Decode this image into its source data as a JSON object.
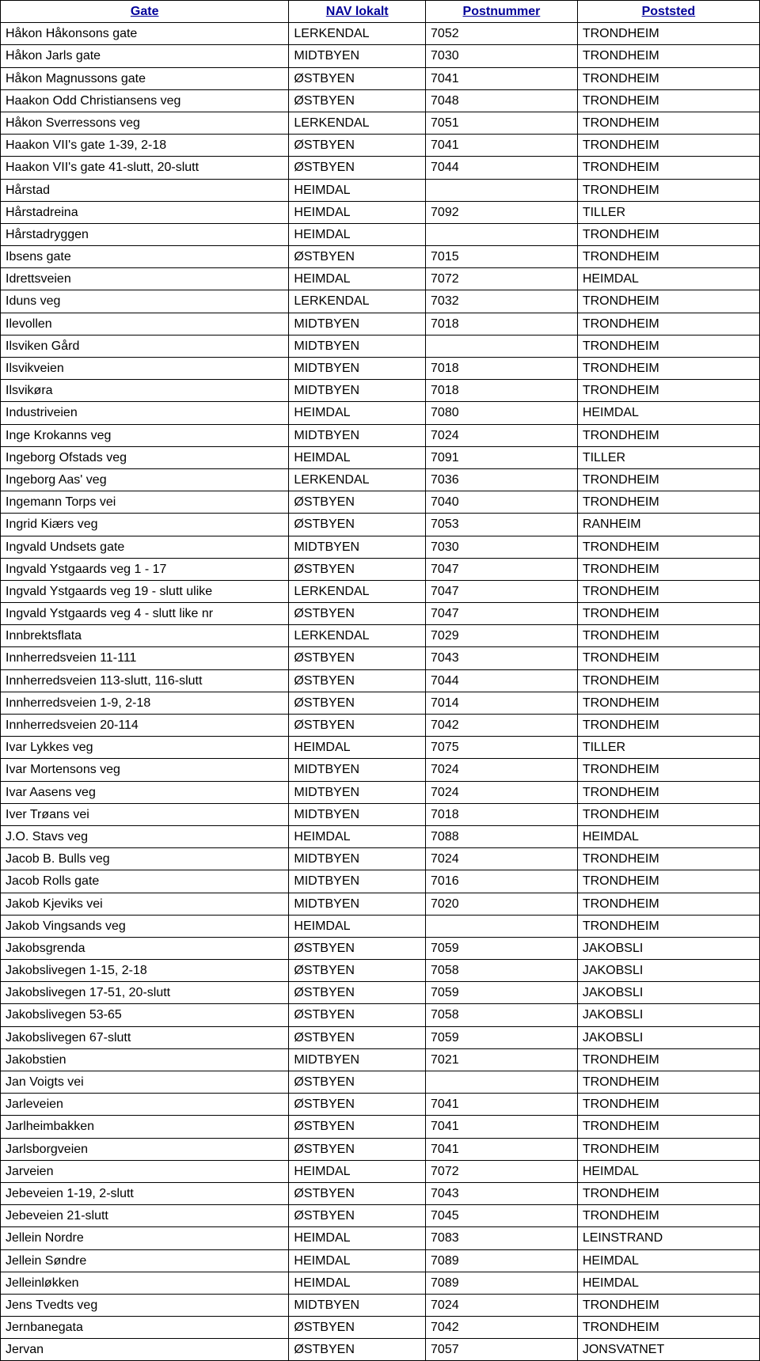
{
  "table": {
    "columns": [
      "Gate",
      "NAV lokalt",
      "Postnummer",
      "Poststed"
    ],
    "rows": [
      [
        "Håkon Håkonsons gate",
        "LERKENDAL",
        "7052",
        "TRONDHEIM"
      ],
      [
        "Håkon Jarls gate",
        "MIDTBYEN",
        "7030",
        "TRONDHEIM"
      ],
      [
        "Håkon Magnussons gate",
        "ØSTBYEN",
        "7041",
        "TRONDHEIM"
      ],
      [
        "Haakon Odd Christiansens veg",
        "ØSTBYEN",
        "7048",
        "TRONDHEIM"
      ],
      [
        "Håkon Sverressons veg",
        "LERKENDAL",
        "7051",
        "TRONDHEIM"
      ],
      [
        "Haakon VII's gate 1-39, 2-18",
        "ØSTBYEN",
        "7041",
        "TRONDHEIM"
      ],
      [
        "Haakon VII's gate 41-slutt, 20-slutt",
        "ØSTBYEN",
        "7044",
        "TRONDHEIM"
      ],
      [
        "Hårstad",
        "HEIMDAL",
        "",
        "TRONDHEIM"
      ],
      [
        "Hårstadreina",
        "HEIMDAL",
        "7092",
        "TILLER"
      ],
      [
        "Hårstadryggen",
        "HEIMDAL",
        "",
        "TRONDHEIM"
      ],
      [
        "Ibsens gate",
        "ØSTBYEN",
        "7015",
        "TRONDHEIM"
      ],
      [
        "Idrettsveien",
        "HEIMDAL",
        "7072",
        "HEIMDAL"
      ],
      [
        "Iduns veg",
        "LERKENDAL",
        "7032",
        "TRONDHEIM"
      ],
      [
        "Ilevollen",
        "MIDTBYEN",
        "7018",
        "TRONDHEIM"
      ],
      [
        "Ilsviken Gård",
        "MIDTBYEN",
        "",
        "TRONDHEIM"
      ],
      [
        "Ilsvikveien",
        "MIDTBYEN",
        "7018",
        "TRONDHEIM"
      ],
      [
        "Ilsvikøra",
        "MIDTBYEN",
        "7018",
        "TRONDHEIM"
      ],
      [
        "Industriveien",
        "HEIMDAL",
        "7080",
        "HEIMDAL"
      ],
      [
        "Inge Krokanns veg",
        "MIDTBYEN",
        "7024",
        "TRONDHEIM"
      ],
      [
        "Ingeborg Ofstads veg",
        "HEIMDAL",
        "7091",
        "TILLER"
      ],
      [
        "Ingeborg Aas' veg",
        "LERKENDAL",
        "7036",
        "TRONDHEIM"
      ],
      [
        "Ingemann Torps vei",
        "ØSTBYEN",
        "7040",
        "TRONDHEIM"
      ],
      [
        "Ingrid Kiærs veg",
        "ØSTBYEN",
        "7053",
        "RANHEIM"
      ],
      [
        "Ingvald Undsets gate",
        "MIDTBYEN",
        "7030",
        "TRONDHEIM"
      ],
      [
        "Ingvald Ystgaards veg 1 - 17",
        "ØSTBYEN",
        "7047",
        "TRONDHEIM"
      ],
      [
        "Ingvald Ystgaards veg 19 - slutt ulike",
        "LERKENDAL",
        "7047",
        "TRONDHEIM"
      ],
      [
        "Ingvald Ystgaards veg 4 - slutt like nr",
        "ØSTBYEN",
        "7047",
        "TRONDHEIM"
      ],
      [
        "Innbrektsflata",
        "LERKENDAL",
        "7029",
        "TRONDHEIM"
      ],
      [
        "Innherredsveien 11-111",
        "ØSTBYEN",
        "7043",
        "TRONDHEIM"
      ],
      [
        "Innherredsveien 113-slutt, 116-slutt",
        "ØSTBYEN",
        "7044",
        "TRONDHEIM"
      ],
      [
        "Innherredsveien 1-9, 2-18",
        "ØSTBYEN",
        "7014",
        "TRONDHEIM"
      ],
      [
        "Innherredsveien 20-114",
        "ØSTBYEN",
        "7042",
        "TRONDHEIM"
      ],
      [
        "Ivar Lykkes veg",
        "HEIMDAL",
        "7075",
        "TILLER"
      ],
      [
        "Ivar Mortensons veg",
        "MIDTBYEN",
        "7024",
        "TRONDHEIM"
      ],
      [
        "Ivar Aasens veg",
        "MIDTBYEN",
        "7024",
        "TRONDHEIM"
      ],
      [
        "Iver Trøans vei",
        "MIDTBYEN",
        "7018",
        "TRONDHEIM"
      ],
      [
        "J.O. Stavs veg",
        "HEIMDAL",
        "7088",
        "HEIMDAL"
      ],
      [
        "Jacob B. Bulls veg",
        "MIDTBYEN",
        "7024",
        "TRONDHEIM"
      ],
      [
        "Jacob Rolls gate",
        "MIDTBYEN",
        "7016",
        "TRONDHEIM"
      ],
      [
        "Jakob Kjeviks vei",
        "MIDTBYEN",
        "7020",
        "TRONDHEIM"
      ],
      [
        "Jakob Vingsands veg",
        "HEIMDAL",
        "",
        "TRONDHEIM"
      ],
      [
        "Jakobsgrenda",
        "ØSTBYEN",
        "7059",
        "JAKOBSLI"
      ],
      [
        "Jakobslivegen 1-15, 2-18",
        "ØSTBYEN",
        "7058",
        "JAKOBSLI"
      ],
      [
        "Jakobslivegen 17-51, 20-slutt",
        "ØSTBYEN",
        "7059",
        "JAKOBSLI"
      ],
      [
        "Jakobslivegen 53-65",
        "ØSTBYEN",
        "7058",
        "JAKOBSLI"
      ],
      [
        "Jakobslivegen 67-slutt",
        "ØSTBYEN",
        "7059",
        "JAKOBSLI"
      ],
      [
        "Jakobstien",
        "MIDTBYEN",
        "7021",
        "TRONDHEIM"
      ],
      [
        "Jan Voigts vei",
        "ØSTBYEN",
        "",
        "TRONDHEIM"
      ],
      [
        "Jarleveien",
        "ØSTBYEN",
        "7041",
        "TRONDHEIM"
      ],
      [
        "Jarlheimbakken",
        "ØSTBYEN",
        "7041",
        "TRONDHEIM"
      ],
      [
        "Jarlsborgveien",
        "ØSTBYEN",
        "7041",
        "TRONDHEIM"
      ],
      [
        "Jarveien",
        "HEIMDAL",
        "7072",
        "HEIMDAL"
      ],
      [
        "Jebeveien 1-19, 2-slutt",
        "ØSTBYEN",
        "7043",
        "TRONDHEIM"
      ],
      [
        "Jebeveien 21-slutt",
        "ØSTBYEN",
        "7045",
        "TRONDHEIM"
      ],
      [
        "Jellein Nordre",
        "HEIMDAL",
        "7083",
        "LEINSTRAND"
      ],
      [
        "Jellein Søndre",
        "HEIMDAL",
        "7089",
        "HEIMDAL"
      ],
      [
        "Jelleinløkken",
        "HEIMDAL",
        "7089",
        "HEIMDAL"
      ],
      [
        "Jens Tvedts veg",
        "MIDTBYEN",
        "7024",
        "TRONDHEIM"
      ],
      [
        "Jernbanegata",
        "ØSTBYEN",
        "7042",
        "TRONDHEIM"
      ],
      [
        "Jervan",
        "ØSTBYEN",
        "7057",
        "JONSVATNET"
      ]
    ]
  }
}
